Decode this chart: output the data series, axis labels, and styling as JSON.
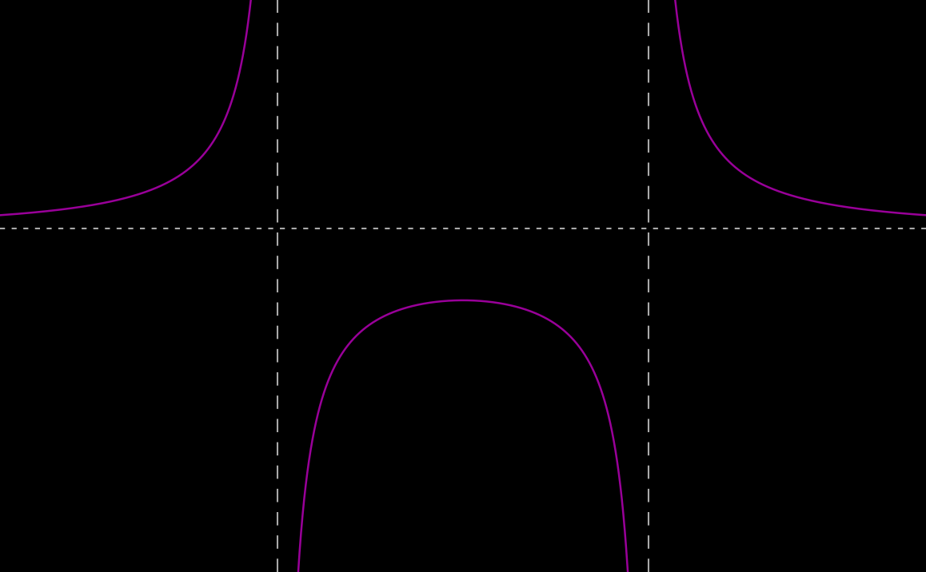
{
  "background_color": "#000000",
  "curve_color": "#990099",
  "asymptote_color": "#aaaaaa",
  "curve_linewidth": 1.8,
  "asymptote_linewidth": 1.5,
  "fig_width": 11.58,
  "fig_height": 7.16,
  "xlim": [
    -5,
    5
  ],
  "ylim": [
    -5,
    5
  ],
  "vert_asymptotes": [
    -2,
    2
  ],
  "horiz_asymptote": 1.0,
  "y_intercept": -0.25,
  "dpi": 100
}
